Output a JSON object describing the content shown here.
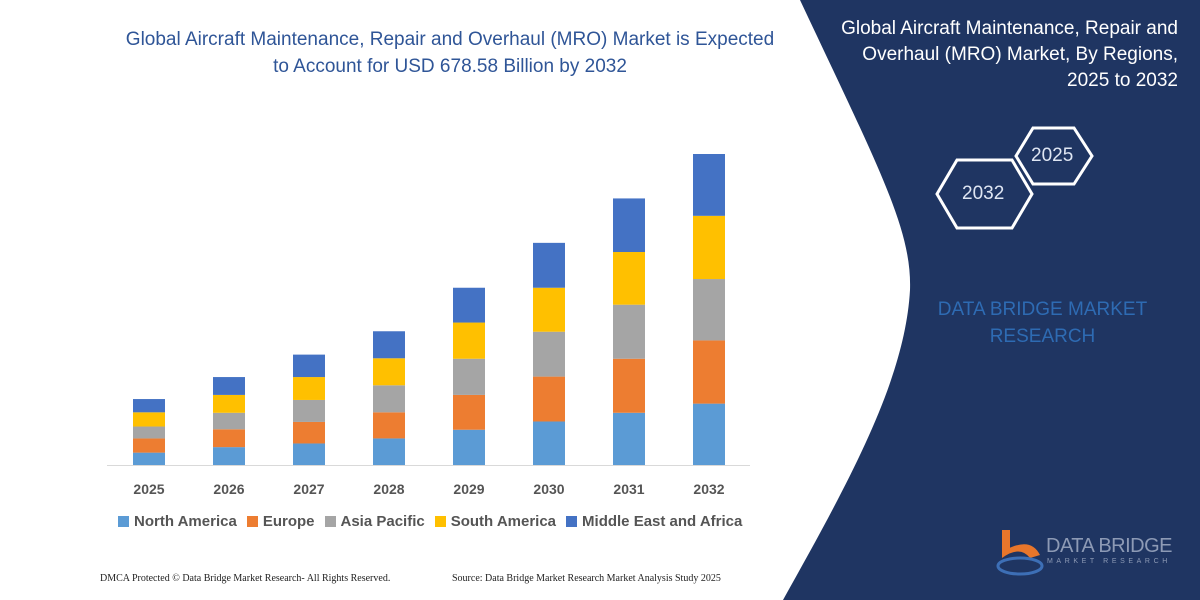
{
  "title": "Global Aircraft Maintenance, Repair and Overhaul (MRO) Market is Expected to Account for USD 678.58 Billion by 2032",
  "side_panel": {
    "title": "Global Aircraft Maintenance, Repair and Overhaul (MRO) Market, By Regions, 2025 to 2032",
    "hex_start": "2025",
    "hex_end": "2032",
    "brand": "DATA BRIDGE MARKET RESEARCH",
    "logo_text": "DATA BRIDGE",
    "logo_sub": "MARKET RESEARCH",
    "panel_color": "#1f3562"
  },
  "footer": {
    "left": "DMCA Protected © Data Bridge Market Research-  All Rights Reserved.",
    "right": "Source: Data Bridge Market Research  Market Analysis Study 2025"
  },
  "chart_data": {
    "type": "bar",
    "stacked": true,
    "title": "Global Aircraft Maintenance, Repair and Overhaul (MRO) Market is Expected to Account for USD 678.58 Billion by 2032",
    "xlabel": "",
    "ylabel": "",
    "grid": false,
    "legend_position": "bottom",
    "ylim": [
      0,
      679
    ],
    "categories": [
      "2025",
      "2026",
      "2027",
      "2028",
      "2029",
      "2030",
      "2031",
      "2032"
    ],
    "series": [
      {
        "name": "North America",
        "color": "#5b9bd5",
        "values": [
          27,
          39,
          47,
          58,
          77,
          95,
          114,
          134
        ]
      },
      {
        "name": "Europe",
        "color": "#ed7d31",
        "values": [
          31,
          39,
          47,
          57,
          76,
          98,
          118,
          138
        ]
      },
      {
        "name": "Asia Pacific",
        "color": "#a5a5a5",
        "values": [
          26,
          36,
          48,
          59,
          79,
          98,
          118,
          134
        ]
      },
      {
        "name": "South America",
        "color": "#ffc000",
        "values": [
          31,
          39,
          50,
          59,
          79,
          96,
          115,
          138
        ]
      },
      {
        "name": "Middle East and Africa",
        "color": "#4472c4",
        "values": [
          29,
          39,
          49,
          59,
          76,
          98,
          117,
          135
        ]
      }
    ]
  }
}
